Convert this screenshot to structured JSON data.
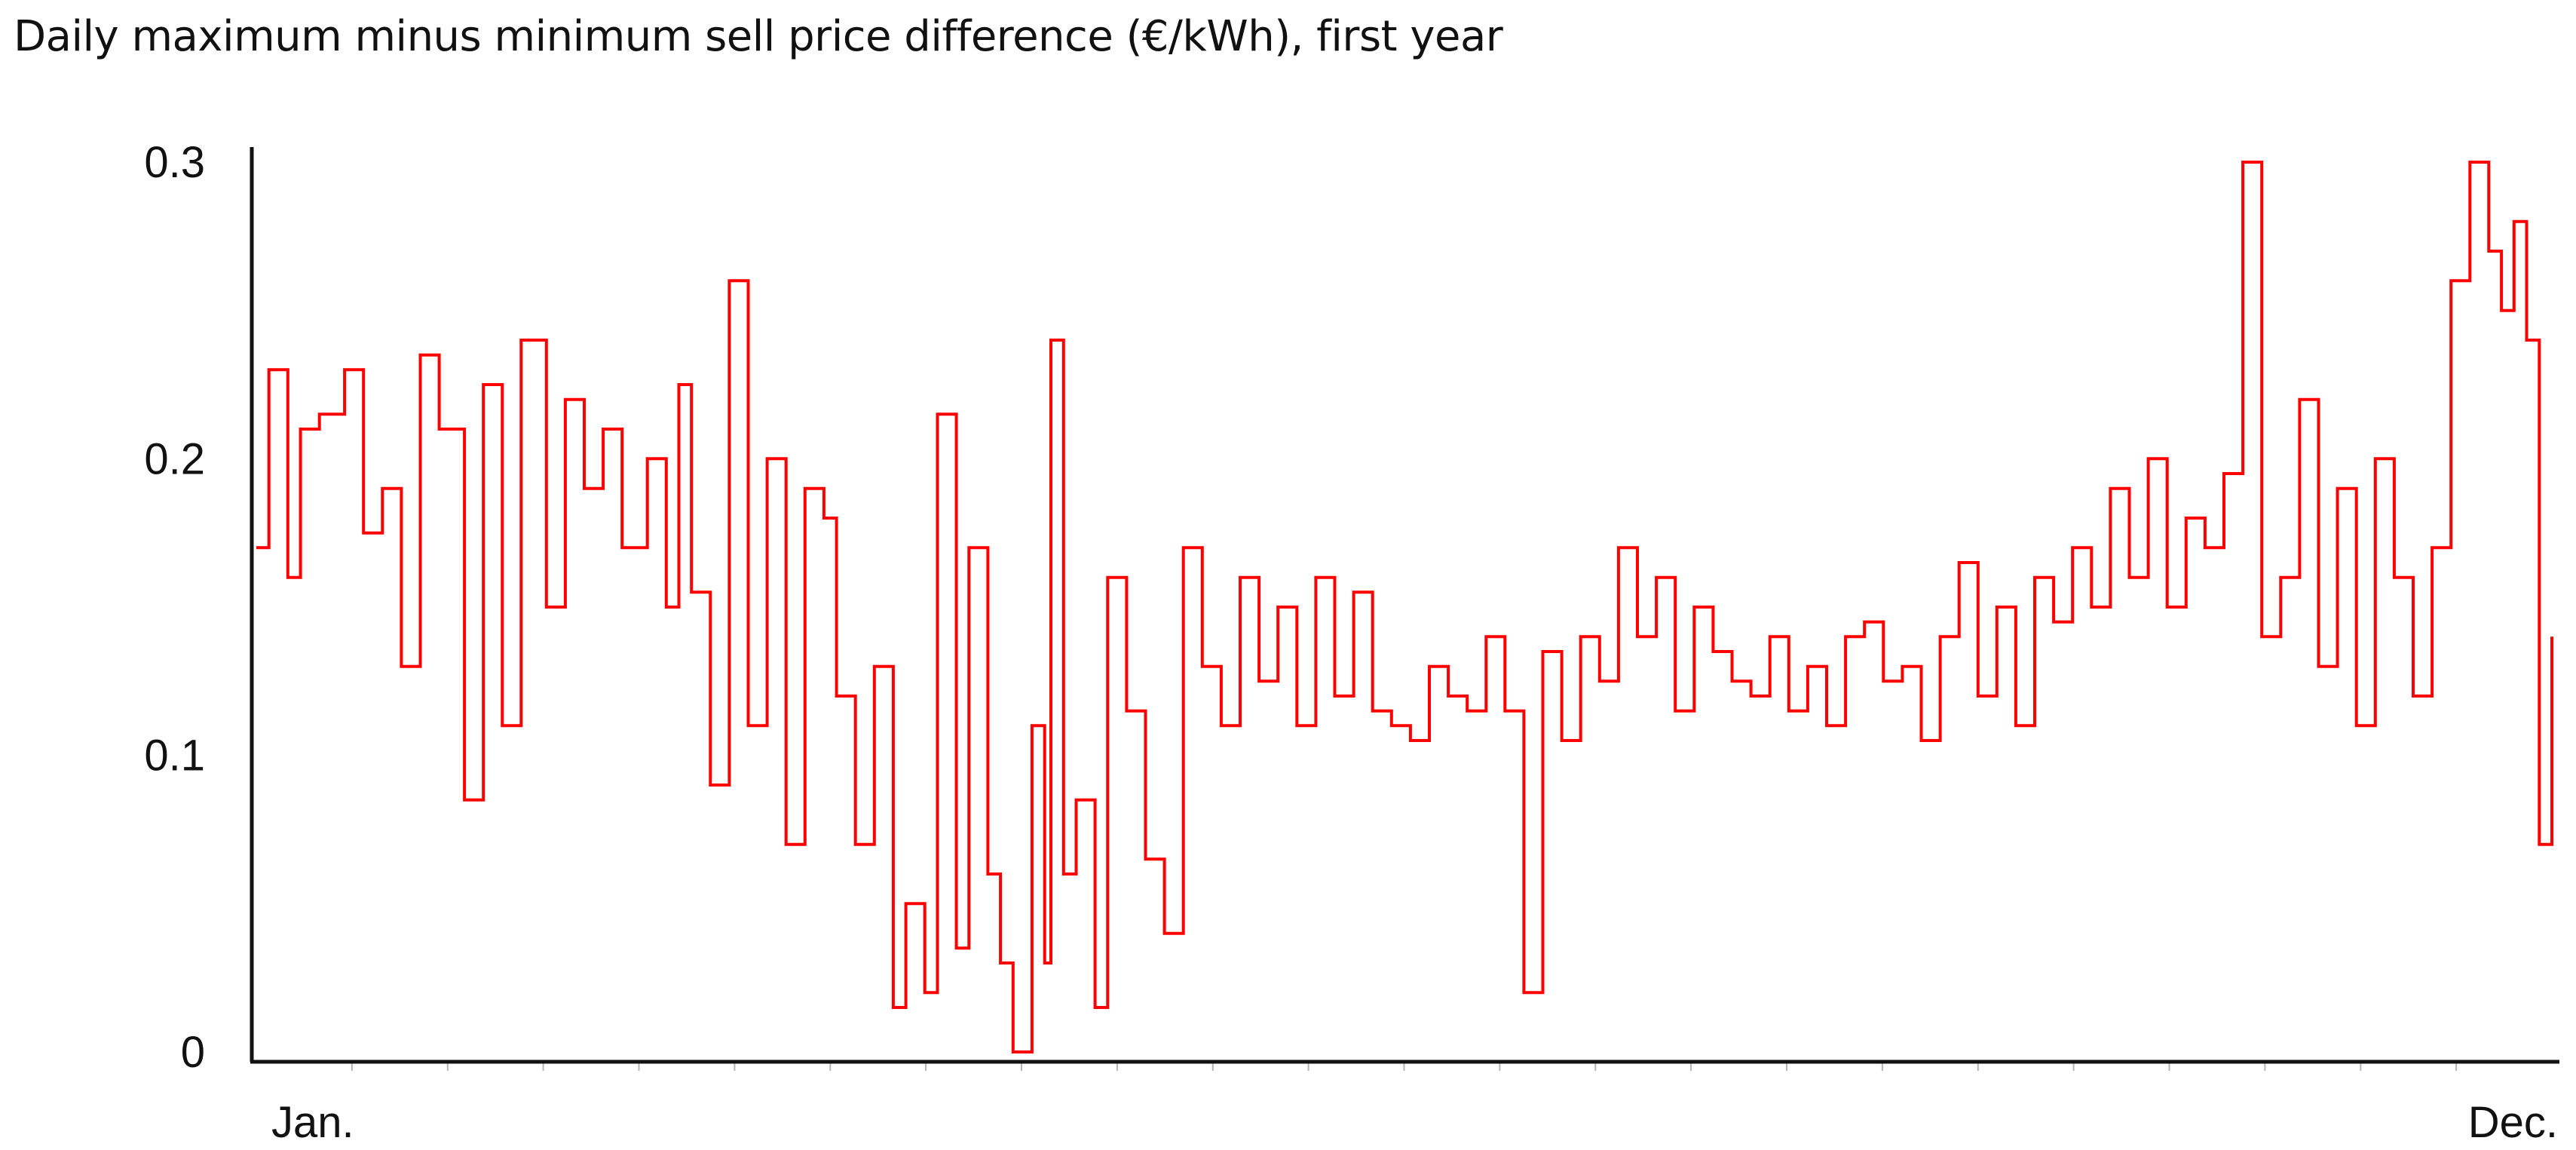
{
  "chart_data": {
    "type": "line",
    "title": "Daily maximum minus minimum sell price difference (€/kWh), first year",
    "xlabel": "",
    "ylabel": "",
    "ylim": [
      0,
      0.3
    ],
    "yticks": [
      {
        "value": 0,
        "label": "0"
      },
      {
        "value": 0.1,
        "label": "0.1"
      },
      {
        "value": 0.2,
        "label": "0.2"
      },
      {
        "value": 0.3,
        "label": "0.3"
      }
    ],
    "x_tick_labels": [
      "Jan.",
      "Dec."
    ],
    "xlim": [
      1,
      365
    ],
    "grid": false,
    "legend": "none",
    "line_style": "step",
    "series": [
      {
        "color": "#ff0000",
        "x": [
          1,
          3,
          6,
          8,
          11,
          15,
          18,
          21,
          24,
          27,
          30,
          34,
          37,
          40,
          43,
          47,
          50,
          53,
          56,
          59,
          63,
          66,
          68,
          70,
          73,
          76,
          79,
          82,
          85,
          88,
          91,
          93,
          96,
          99,
          102,
          104,
          107,
          109,
          112,
          114,
          117,
          119,
          121,
          124,
          126,
          127,
          129,
          131,
          134,
          136,
          139,
          142,
          145,
          148,
          151,
          154,
          157,
          160,
          163,
          166,
          169,
          172,
          175,
          178,
          181,
          184,
          187,
          190,
          193,
          196,
          199,
          202,
          205,
          208,
          211,
          214,
          217,
          220,
          223,
          226,
          229,
          232,
          235,
          238,
          241,
          244,
          247,
          250,
          253,
          256,
          259,
          262,
          265,
          268,
          271,
          274,
          277,
          280,
          283,
          286,
          289,
          292,
          295,
          298,
          301,
          304,
          307,
          310,
          313,
          316,
          319,
          322,
          325,
          328,
          331,
          334,
          337,
          340,
          343,
          346,
          349,
          352,
          355,
          357,
          359,
          361,
          363,
          365
        ],
        "values": [
          0.17,
          0.23,
          0.16,
          0.21,
          0.215,
          0.23,
          0.175,
          0.19,
          0.13,
          0.235,
          0.21,
          0.085,
          0.225,
          0.11,
          0.24,
          0.15,
          0.22,
          0.19,
          0.21,
          0.17,
          0.2,
          0.15,
          0.225,
          0.155,
          0.09,
          0.26,
          0.11,
          0.2,
          0.07,
          0.19,
          0.18,
          0.12,
          0.07,
          0.13,
          0.015,
          0.05,
          0.02,
          0.215,
          0.035,
          0.17,
          0.06,
          0.03,
          0.0,
          0.11,
          0.03,
          0.24,
          0.06,
          0.085,
          0.015,
          0.16,
          0.115,
          0.065,
          0.04,
          0.17,
          0.13,
          0.11,
          0.16,
          0.125,
          0.15,
          0.11,
          0.16,
          0.12,
          0.155,
          0.115,
          0.11,
          0.105,
          0.13,
          0.12,
          0.115,
          0.14,
          0.115,
          0.02,
          0.135,
          0.105,
          0.14,
          0.125,
          0.17,
          0.14,
          0.16,
          0.115,
          0.15,
          0.135,
          0.125,
          0.12,
          0.14,
          0.115,
          0.13,
          0.11,
          0.14,
          0.145,
          0.125,
          0.13,
          0.105,
          0.14,
          0.165,
          0.12,
          0.15,
          0.11,
          0.16,
          0.145,
          0.17,
          0.15,
          0.19,
          0.16,
          0.2,
          0.15,
          0.18,
          0.17,
          0.195,
          0.3,
          0.14,
          0.16,
          0.22,
          0.13,
          0.19,
          0.11,
          0.2,
          0.16,
          0.12,
          0.17,
          0.26,
          0.3,
          0.27,
          0.25,
          0.28,
          0.24,
          0.07,
          0.14
        ]
      }
    ]
  }
}
